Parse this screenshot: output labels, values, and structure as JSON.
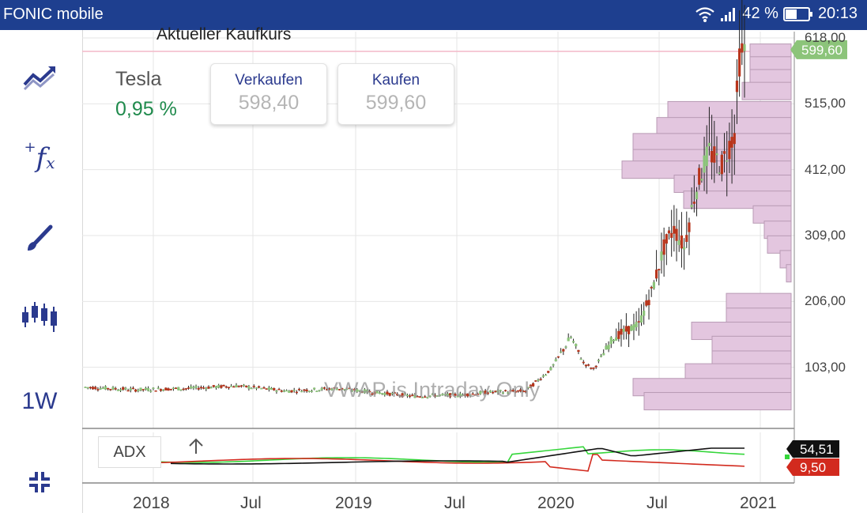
{
  "status_bar": {
    "carrier": "FONIC mobile",
    "battery": "42 %",
    "time": "20:13"
  },
  "toolbar": {
    "interval": "1W",
    "icons": [
      "trend-icon",
      "fx-icon",
      "brush-icon",
      "candlestick-icon",
      "interval",
      "collapse-icon"
    ]
  },
  "header": {
    "title": "Aktueller Kaufkurs",
    "instrument": "Tesla",
    "change": "0,95 %",
    "change_color": "#1f8a4c"
  },
  "sell": {
    "label": "Verkaufen",
    "value": "598,40"
  },
  "buy": {
    "label": "Kaufen",
    "value": "599,60"
  },
  "watermark": "VWAP is Intraday Only",
  "price_tag": "599,60",
  "adx": {
    "label": "ADX",
    "values": [
      "54,51",
      "9,50"
    ]
  },
  "chart_data": {
    "type": "candlestick",
    "y_ticks": [
      "618,00",
      "515,00",
      "412,00",
      "309,00",
      "206,00",
      "103,00"
    ],
    "x_ticks": [
      "2018",
      "Jul",
      "2019",
      "Jul",
      "2020",
      "Jul",
      "2021"
    ],
    "last_price": 599.6,
    "series": [
      {
        "name": "close",
        "anchors": [
          [
            0,
            72
          ],
          [
            20,
            68
          ],
          [
            40,
            70
          ],
          [
            60,
            74
          ],
          [
            80,
            66
          ],
          [
            100,
            70
          ],
          [
            120,
            62
          ],
          [
            130,
            58
          ],
          [
            150,
            60
          ],
          [
            160,
            64
          ],
          [
            175,
            66
          ],
          [
            185,
            100
          ],
          [
            193,
            150
          ],
          [
            198,
            110
          ],
          [
            202,
            100
          ],
          [
            210,
            150
          ],
          [
            220,
            170
          ],
          [
            225,
            220
          ],
          [
            230,
            290
          ],
          [
            234,
            320
          ],
          [
            238,
            290
          ],
          [
            242,
            370
          ],
          [
            245,
            410
          ],
          [
            248,
            440
          ],
          [
            250,
            430
          ],
          [
            253,
            420
          ],
          [
            255,
            440
          ],
          [
            258,
            470
          ],
          [
            260,
            585
          ],
          [
            262,
            600
          ]
        ]
      }
    ],
    "volume_profile": [
      {
        "price": 595,
        "width": 0.26
      },
      {
        "price": 575,
        "width": 0.26
      },
      {
        "price": 555,
        "width": 0.26
      },
      {
        "price": 535,
        "width": 0.31
      },
      {
        "price": 505,
        "width": 0.78
      },
      {
        "price": 480,
        "width": 0.85
      },
      {
        "price": 455,
        "width": 1.0
      },
      {
        "price": 430,
        "width": 1.0
      },
      {
        "price": 412,
        "width": 1.07
      },
      {
        "price": 390,
        "width": 0.74
      },
      {
        "price": 365,
        "width": 0.68
      },
      {
        "price": 342,
        "width": 0.24
      },
      {
        "price": 318,
        "width": 0.17
      },
      {
        "price": 295,
        "width": 0.15
      },
      {
        "price": 272,
        "width": 0.07
      },
      {
        "price": 250,
        "width": 0.03
      },
      {
        "price": 205,
        "width": 0.41
      },
      {
        "price": 182,
        "width": 0.41
      },
      {
        "price": 160,
        "width": 0.63
      },
      {
        "price": 138,
        "width": 0.5
      },
      {
        "price": 115,
        "width": 0.5
      },
      {
        "price": 95,
        "width": 0.67
      },
      {
        "price": 72,
        "width": 1.0
      },
      {
        "price": 50,
        "width": 0.93
      }
    ],
    "adx_indicator": {
      "adx": 54.51,
      "minus_di": 9.5
    }
  }
}
